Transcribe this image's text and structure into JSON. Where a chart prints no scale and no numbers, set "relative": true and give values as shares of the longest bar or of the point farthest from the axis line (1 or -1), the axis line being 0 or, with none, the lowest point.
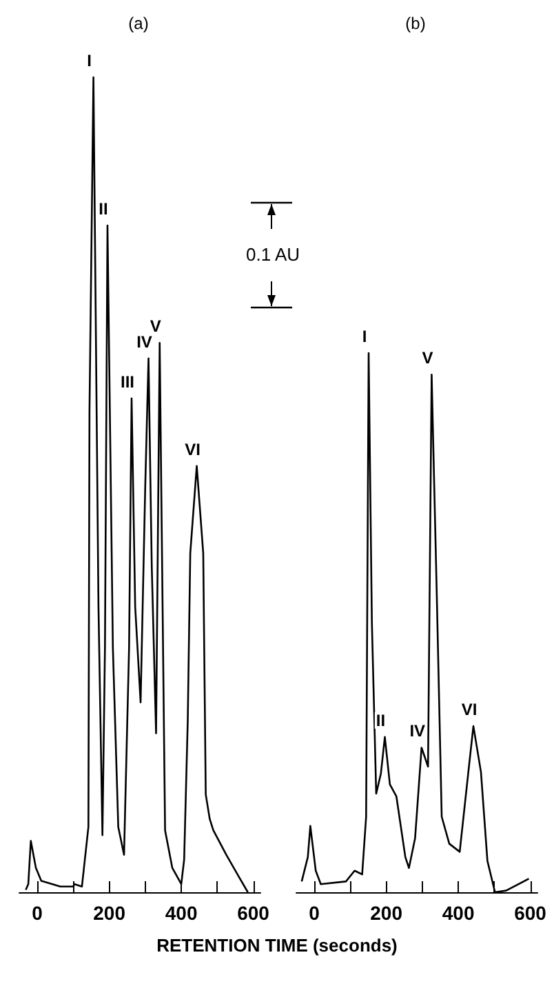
{
  "chart_data": [
    {
      "type": "line",
      "title": "(a)",
      "xlabel": "RETENTION TIME (seconds)",
      "relative": true,
      "xlim": [
        -50,
        620
      ],
      "xticks": [
        0,
        {
          "value": 100,
          "label": null
        },
        200,
        {
          "value": 300,
          "label": null
        },
        400,
        {
          "value": 500,
          "label": null
        },
        600
      ],
      "series": [
        {
          "color": "#000000",
          "x": [
            -32,
            -25,
            -18,
            -4,
            11,
            64,
            100,
            103,
            124,
            142,
            145,
            156,
            170,
            181,
            188,
            195,
            210,
            225,
            241,
            255,
            262,
            272,
            287,
            300,
            309,
            318,
            330,
            340,
            355,
            375,
            400,
            408,
            418,
            425,
            443,
            461,
            468,
            479,
            489,
            525,
            560,
            585
          ],
          "values": [
            0.003,
            0.01,
            0.063,
            0.03,
            0.014,
            0.007,
            0.007,
            0.01,
            0.007,
            0.08,
            0.59,
            1.0,
            0.35,
            0.07,
            0.3,
            0.818,
            0.3,
            0.08,
            0.046,
            0.3,
            0.606,
            0.35,
            0.233,
            0.5,
            0.655,
            0.4,
            0.195,
            0.674,
            0.076,
            0.03,
            0.01,
            0.04,
            0.21,
            0.416,
            0.523,
            0.416,
            0.12,
            0.09,
            0.076,
            0.046,
            0.019,
            0.0
          ]
        }
      ],
      "annotations": [
        {
          "text": "I",
          "x": 156,
          "y": 1.0
        },
        {
          "text": "II",
          "x": 195,
          "y": 0.818
        },
        {
          "text": "III",
          "x": 262,
          "y": 0.606
        },
        {
          "text": "IV",
          "x": 309,
          "y": 0.655
        },
        {
          "text": "V",
          "x": 340,
          "y": 0.674
        },
        {
          "text": "VI",
          "x": 443,
          "y": 0.523
        },
        "0.1 AU"
      ]
    },
    {
      "type": "line",
      "title": "(b)",
      "relative": true,
      "xlim": [
        -50,
        620
      ],
      "xticks": [
        0,
        {
          "value": 100,
          "label": null
        },
        200,
        {
          "value": 300,
          "label": null
        },
        400,
        {
          "value": 500,
          "label": null
        },
        600
      ],
      "series": [
        {
          "color": "#000000",
          "x": [
            -35,
            -18,
            -11,
            4,
            18,
            88,
            112,
            133,
            144,
            151,
            160,
            172,
            185,
            196,
            210,
            228,
            253,
            263,
            280,
            298,
            316,
            326,
            340,
            354,
            375,
            404,
            428,
            442,
            463,
            481,
            502,
            533,
            596
          ],
          "values": [
            0.02,
            0.065,
            0.123,
            0.04,
            0.015,
            0.02,
            0.04,
            0.033,
            0.14,
            1.0,
            0.5,
            0.183,
            0.22,
            0.288,
            0.2,
            0.178,
            0.065,
            0.045,
            0.1,
            0.268,
            0.233,
            0.96,
            0.56,
            0.14,
            0.09,
            0.075,
            0.223,
            0.308,
            0.223,
            0.058,
            0.0,
            0.003,
            0.025
          ]
        }
      ],
      "annotations": [
        {
          "text": "I",
          "x": 151,
          "y": 1.0
        },
        {
          "text": "II",
          "x": 196,
          "y": 0.288
        },
        {
          "text": "IV",
          "x": 298,
          "y": 0.268
        },
        {
          "text": "V",
          "x": 326,
          "y": 0.96
        },
        {
          "text": "VI",
          "x": 442,
          "y": 0.308
        }
      ]
    }
  ]
}
